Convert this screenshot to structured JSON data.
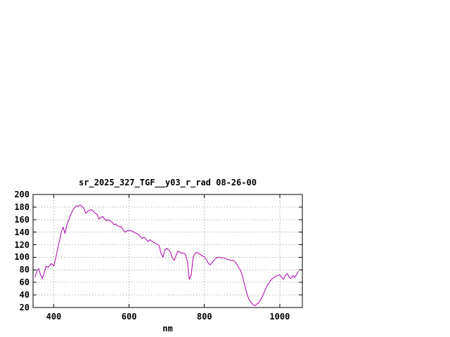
{
  "chart_data": {
    "type": "line",
    "title": "sr_2025_327_TGF__y03_r_rad 08-26-00",
    "xlabel": "nm",
    "ylabel": "",
    "xlim": [
      345,
      1060
    ],
    "ylim": [
      20,
      200
    ],
    "xticks": [
      400,
      600,
      800,
      1000
    ],
    "yticks": [
      20,
      40,
      60,
      80,
      100,
      120,
      140,
      160,
      180,
      200
    ],
    "grid": true,
    "grid_style": "dotted",
    "legend_position": "none",
    "line_color": "#aa00aa",
    "background_color": "#ffffff",
    "x_start": 350,
    "x_step": 5,
    "series": [
      {
        "name": "sr_2025_327_TGF__y03_r_rad",
        "values": [
          68,
          78,
          82,
          72,
          66,
          76,
          86,
          84,
          88,
          90,
          86,
          98,
          112,
          126,
          140,
          148,
          138,
          152,
          160,
          168,
          174,
          179,
          182,
          181,
          183,
          181,
          178,
          170,
          173,
          175,
          176,
          173,
          170,
          168,
          161,
          163,
          165,
          161,
          158,
          160,
          158,
          156,
          152,
          153,
          150,
          149,
          148,
          143,
          140,
          142,
          143,
          142,
          141,
          139,
          138,
          136,
          133,
          130,
          132,
          129,
          125,
          128,
          126,
          124,
          122,
          121,
          118,
          106,
          100,
          112,
          114,
          112,
          108,
          99,
          95,
          104,
          110,
          108,
          106,
          107,
          104,
          93,
          65,
          72,
          100,
          106,
          108,
          106,
          104,
          102,
          101,
          96,
          91,
          88,
          91,
          95,
          98,
          100,
          100,
          99,
          99,
          98,
          97,
          96,
          95,
          95,
          94,
          90,
          85,
          80,
          72,
          60,
          48,
          38,
          31,
          27,
          24,
          23,
          26,
          28,
          33,
          39,
          46,
          53,
          58,
          62,
          66,
          68,
          70,
          71,
          72,
          68,
          65,
          71,
          74,
          68,
          66,
          71,
          68,
          73,
          78
        ]
      }
    ]
  }
}
